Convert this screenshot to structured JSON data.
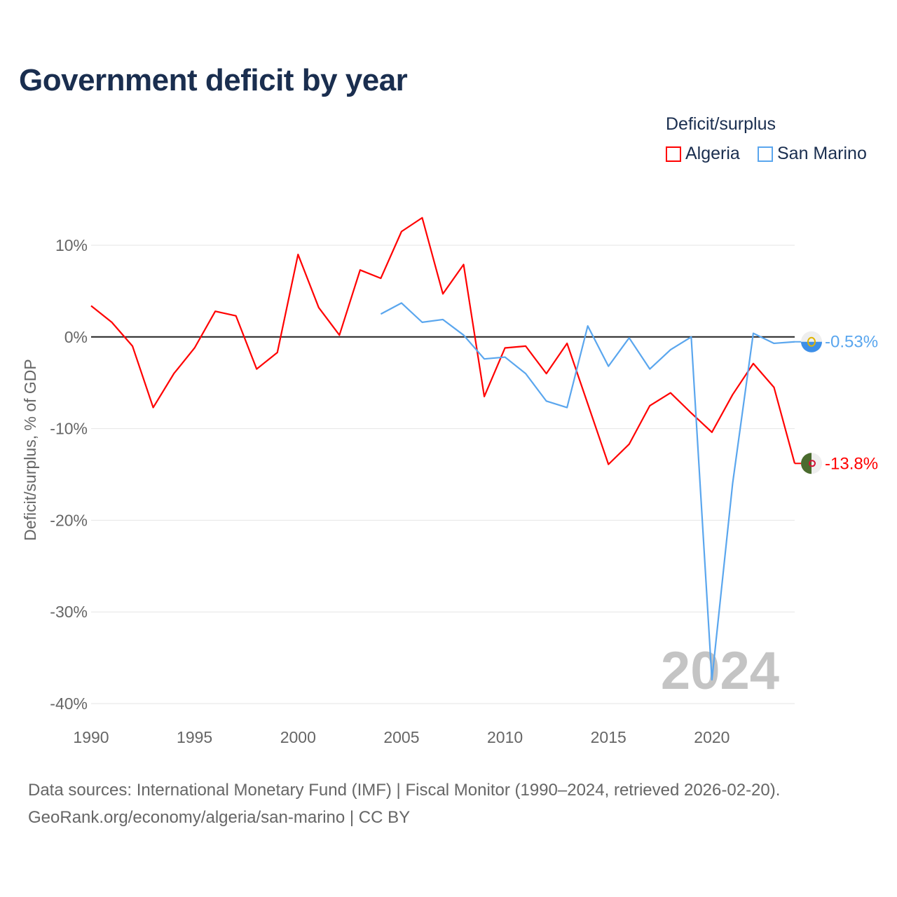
{
  "chart_data": {
    "type": "line",
    "title": "Government deficit by year",
    "ylabel": "Deficit/surplus, % of GDP",
    "xlabel": "",
    "legend_title": "Deficit/surplus",
    "legend_placement": "top-right",
    "xlim": [
      1990,
      2024
    ],
    "ylim": [
      -40,
      13
    ],
    "xticks": [
      1990,
      1995,
      2000,
      2005,
      2010,
      2015,
      2020
    ],
    "xtick_labels": [
      "1990",
      "1995",
      "2000",
      "2005",
      "2010",
      "2015",
      "2020"
    ],
    "yticks": [
      10,
      0,
      -10,
      -20,
      -30,
      -40
    ],
    "ytick_labels": [
      "10%",
      "0%",
      "-10%",
      "-20%",
      "-30%",
      "-40%"
    ],
    "grid": true,
    "year_watermark": "2024",
    "series": [
      {
        "name": "Algeria",
        "color": "#ff0000",
        "end_label": "-13.8%",
        "flag": "algeria-flag",
        "x": [
          1990,
          1991,
          1992,
          1993,
          1994,
          1995,
          1996,
          1997,
          1998,
          1999,
          2000,
          2001,
          2002,
          2003,
          2004,
          2005,
          2006,
          2007,
          2008,
          2009,
          2010,
          2011,
          2012,
          2013,
          2014,
          2015,
          2016,
          2017,
          2018,
          2019,
          2020,
          2021,
          2022,
          2023,
          2024
        ],
        "values": [
          3.4,
          1.6,
          -1.0,
          -7.7,
          -4.0,
          -1.2,
          2.8,
          2.3,
          -3.5,
          -1.7,
          9.0,
          3.2,
          0.2,
          7.3,
          6.4,
          11.5,
          13.0,
          4.7,
          7.9,
          -6.5,
          -1.2,
          -1.0,
          -4.0,
          -0.7,
          -7.3,
          -13.9,
          -11.7,
          -7.5,
          -6.1,
          -8.3,
          -10.4,
          -6.3,
          -2.9,
          -5.5,
          -13.8
        ]
      },
      {
        "name": "San Marino",
        "color": "#5aa6ee",
        "end_label": "-0.53%",
        "flag": "san-marino-flag",
        "x": [
          2004,
          2005,
          2006,
          2007,
          2008,
          2009,
          2010,
          2011,
          2012,
          2013,
          2014,
          2015,
          2016,
          2017,
          2018,
          2019,
          2020,
          2021,
          2022,
          2023,
          2024
        ],
        "values": [
          2.5,
          3.7,
          1.6,
          1.9,
          0.2,
          -2.4,
          -2.2,
          -4.0,
          -7.0,
          -7.7,
          1.2,
          -3.2,
          -0.1,
          -3.5,
          -1.4,
          0.0,
          -37.4,
          -16.0,
          0.4,
          -0.7,
          -0.53
        ]
      }
    ]
  },
  "footer": {
    "line1": "Data sources: International Monetary Fund (IMF) | Fiscal Monitor (1990–2024, retrieved 2026-02-20).",
    "line2": "GeoRank.org/economy/algeria/san-marino | CC BY"
  }
}
